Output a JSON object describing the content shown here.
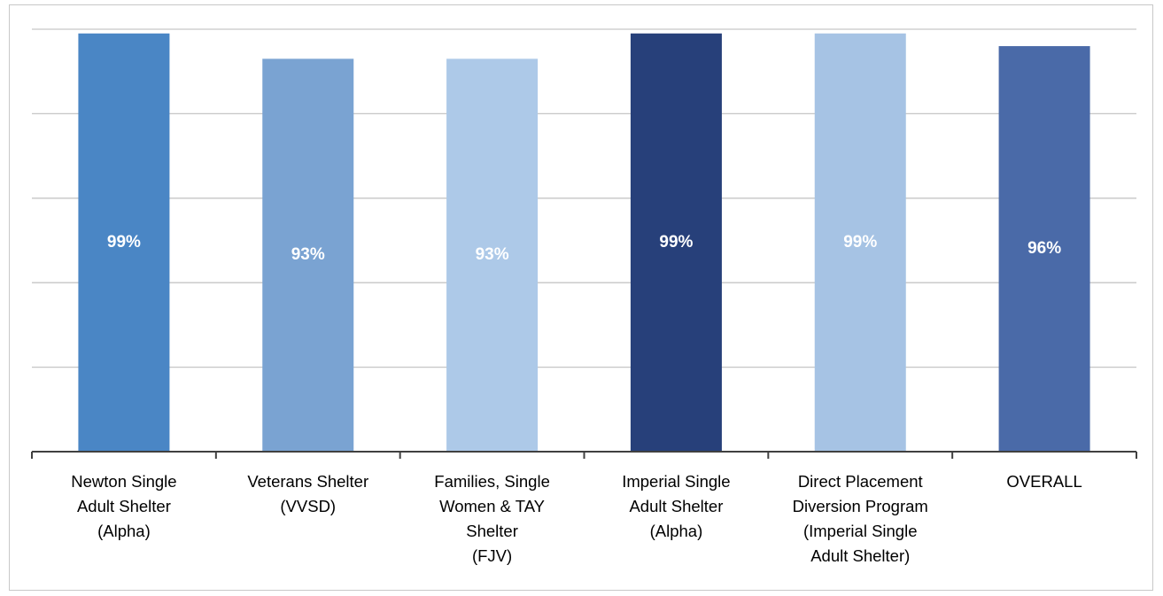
{
  "chart_data": {
    "type": "bar",
    "categories": [
      "Newton Single\nAdult Shelter\n(Alpha)",
      "Veterans Shelter\n(VVSD)",
      "Families, Single\nWomen & TAY\nShelter\n(FJV)",
      "Imperial Single\nAdult Shelter\n(Alpha)",
      "Direct Placement\nDiversion Program\n(Imperial Single\nAdult Shelter)",
      "OVERALL"
    ],
    "values": [
      99,
      93,
      93,
      99,
      99,
      96
    ],
    "value_labels": [
      "99%",
      "93%",
      "93%",
      "99%",
      "99%",
      "96%"
    ],
    "colors": [
      "#4a86c5",
      "#7aa3d2",
      "#adc9e8",
      "#27407a",
      "#a6c3e4",
      "#4a6aa8"
    ],
    "ylim": [
      0,
      100
    ],
    "yticks": [
      0,
      20,
      40,
      60,
      80,
      100
    ],
    "grid": true
  }
}
